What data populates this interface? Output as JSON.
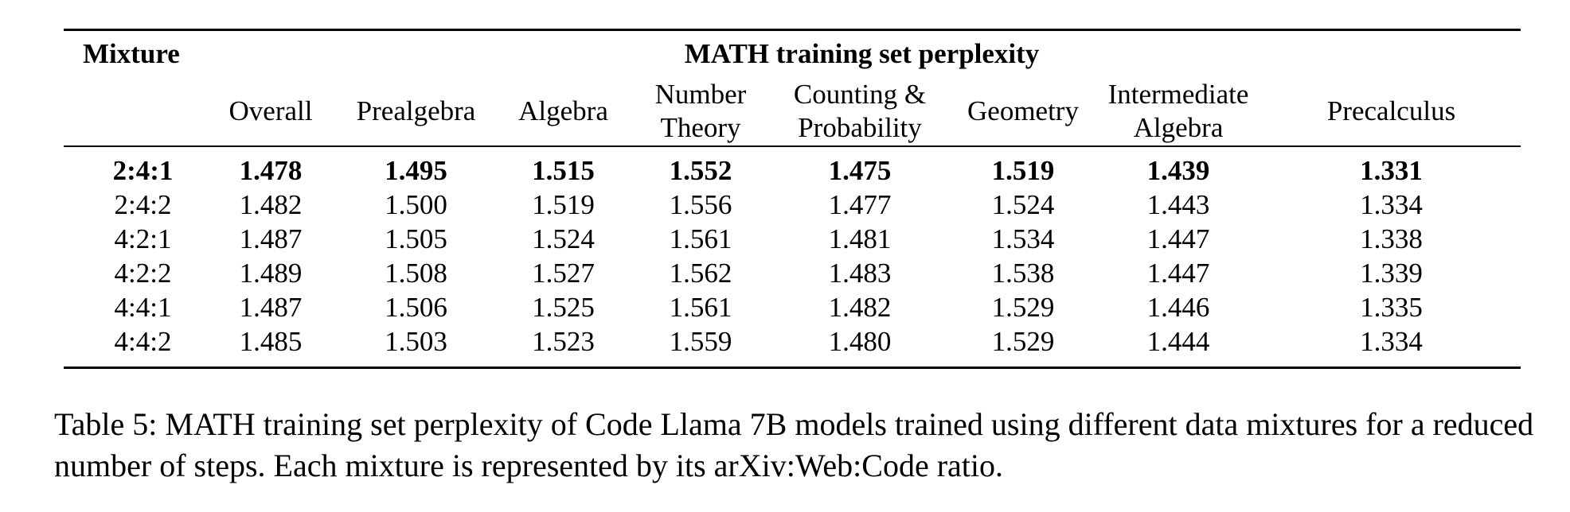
{
  "table": {
    "mixture_header": "Mixture",
    "group_header": "MATH training set perplexity",
    "columns": [
      [
        "Overall"
      ],
      [
        "Prealgebra"
      ],
      [
        "Algebra"
      ],
      [
        "Number",
        "Theory"
      ],
      [
        "Counting &",
        "Probability"
      ],
      [
        "Geometry"
      ],
      [
        "Intermediate",
        "Algebra"
      ],
      [
        "Precalculus"
      ]
    ],
    "rows": [
      {
        "mixture": "2:4:1",
        "values": [
          "1.478",
          "1.495",
          "1.515",
          "1.552",
          "1.475",
          "1.519",
          "1.439",
          "1.331"
        ],
        "bold": true
      },
      {
        "mixture": "2:4:2",
        "values": [
          "1.482",
          "1.500",
          "1.519",
          "1.556",
          "1.477",
          "1.524",
          "1.443",
          "1.334"
        ],
        "bold": false
      },
      {
        "mixture": "4:2:1",
        "values": [
          "1.487",
          "1.505",
          "1.524",
          "1.561",
          "1.481",
          "1.534",
          "1.447",
          "1.338"
        ],
        "bold": false
      },
      {
        "mixture": "4:2:2",
        "values": [
          "1.489",
          "1.508",
          "1.527",
          "1.562",
          "1.483",
          "1.538",
          "1.447",
          "1.339"
        ],
        "bold": false
      },
      {
        "mixture": "4:4:1",
        "values": [
          "1.487",
          "1.506",
          "1.525",
          "1.561",
          "1.482",
          "1.529",
          "1.446",
          "1.335"
        ],
        "bold": false
      },
      {
        "mixture": "4:4:2",
        "values": [
          "1.485",
          "1.503",
          "1.523",
          "1.559",
          "1.480",
          "1.529",
          "1.444",
          "1.334"
        ],
        "bold": false
      }
    ]
  },
  "caption": "Table 5: MATH training set perplexity of Code Llama 7B models trained using different data mixtures for a reduced number of steps. Each mixture is represented by its arXiv:Web:Code ratio."
}
